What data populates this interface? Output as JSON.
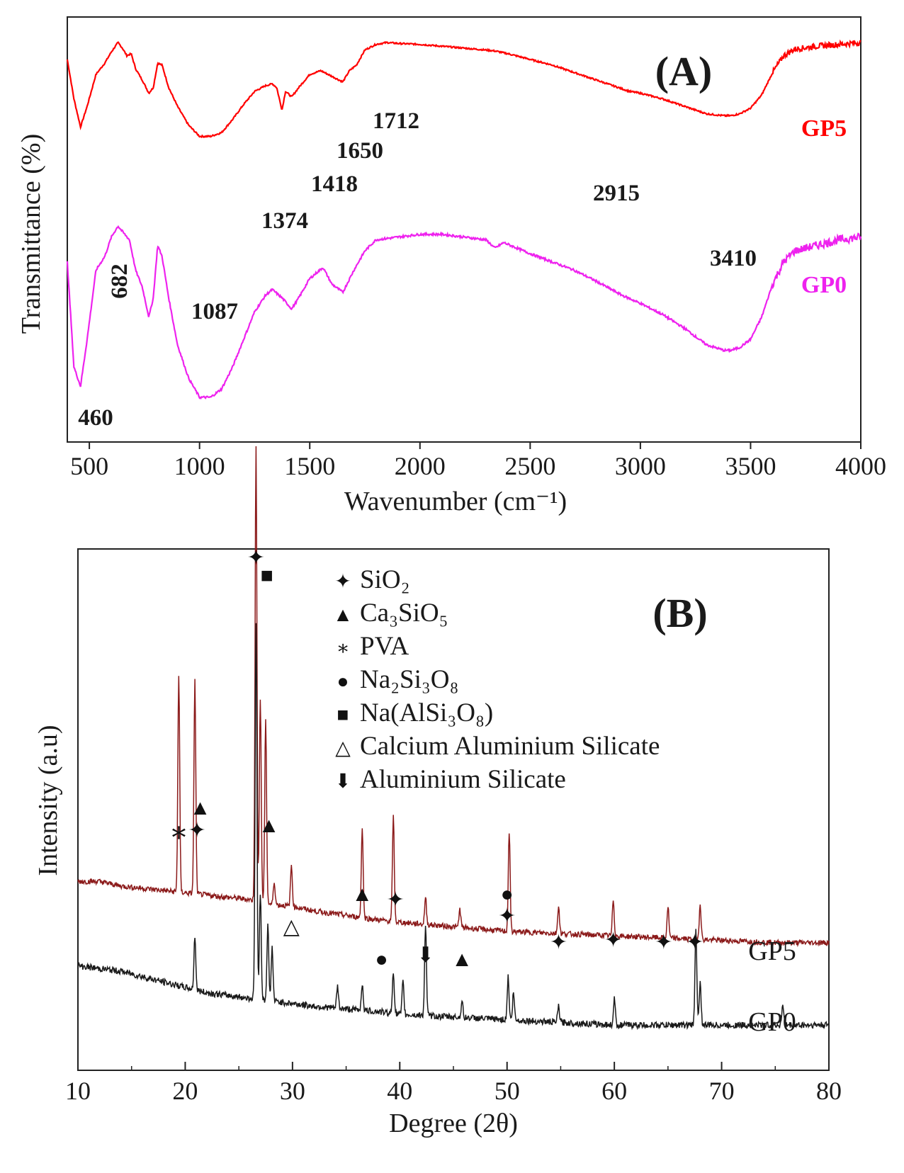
{
  "chart_data": [
    {
      "panel_label": "(A)",
      "type": "line",
      "xlabel": "Wavenumber (cm⁻¹)",
      "ylabel": "Transmittance (%)",
      "xlim": [
        400,
        4000
      ],
      "ylim": [
        0,
        1
      ],
      "x_ticks": [
        500,
        1000,
        1500,
        2000,
        2500,
        3000,
        3500,
        4000
      ],
      "series": [
        {
          "name": "GP5",
          "color": "#ff0000",
          "points": [
            [
              400,
              0.91
            ],
            [
              430,
              0.7
            ],
            [
              460,
              0.55
            ],
            [
              490,
              0.66
            ],
            [
              530,
              0.83
            ],
            [
              570,
              0.89
            ],
            [
              600,
              0.95
            ],
            [
              630,
              1.0
            ],
            [
              650,
              0.97
            ],
            [
              670,
              0.93
            ],
            [
              690,
              0.94
            ],
            [
              710,
              0.86
            ],
            [
              740,
              0.8
            ],
            [
              770,
              0.73
            ],
            [
              790,
              0.76
            ],
            [
              810,
              0.89
            ],
            [
              830,
              0.88
            ],
            [
              860,
              0.76
            ],
            [
              900,
              0.66
            ],
            [
              950,
              0.56
            ],
            [
              1000,
              0.5
            ],
            [
              1050,
              0.5
            ],
            [
              1100,
              0.52
            ],
            [
              1150,
              0.59
            ],
            [
              1200,
              0.67
            ],
            [
              1250,
              0.74
            ],
            [
              1300,
              0.77
            ],
            [
              1330,
              0.78
            ],
            [
              1350,
              0.76
            ],
            [
              1374,
              0.64
            ],
            [
              1390,
              0.74
            ],
            [
              1418,
              0.71
            ],
            [
              1450,
              0.76
            ],
            [
              1500,
              0.83
            ],
            [
              1550,
              0.85
            ],
            [
              1600,
              0.82
            ],
            [
              1650,
              0.79
            ],
            [
              1680,
              0.85
            ],
            [
              1712,
              0.88
            ],
            [
              1750,
              0.96
            ],
            [
              1800,
              0.99
            ],
            [
              1850,
              1.0
            ],
            [
              1900,
              0.995
            ],
            [
              2000,
              0.99
            ],
            [
              2100,
              0.98
            ],
            [
              2200,
              0.97
            ],
            [
              2300,
              0.96
            ],
            [
              2340,
              0.955
            ],
            [
              2400,
              0.94
            ],
            [
              2500,
              0.91
            ],
            [
              2600,
              0.88
            ],
            [
              2700,
              0.84
            ],
            [
              2800,
              0.8
            ],
            [
              2900,
              0.76
            ],
            [
              2950,
              0.74
            ],
            [
              3000,
              0.73
            ],
            [
              3100,
              0.7
            ],
            [
              3200,
              0.66
            ],
            [
              3300,
              0.62
            ],
            [
              3380,
              0.61
            ],
            [
              3410,
              0.61
            ],
            [
              3450,
              0.62
            ],
            [
              3500,
              0.65
            ],
            [
              3550,
              0.72
            ],
            [
              3600,
              0.84
            ],
            [
              3650,
              0.93
            ],
            [
              3700,
              0.965
            ],
            [
              3800,
              0.98
            ],
            [
              3900,
              0.99
            ],
            [
              4000,
              1.0
            ]
          ]
        },
        {
          "name": "GP0",
          "color": "#ee22ee",
          "points": [
            [
              400,
              0.58
            ],
            [
              430,
              0.2
            ],
            [
              460,
              0.13
            ],
            [
              490,
              0.3
            ],
            [
              530,
              0.55
            ],
            [
              570,
              0.6
            ],
            [
              600,
              0.67
            ],
            [
              630,
              0.71
            ],
            [
              650,
              0.69
            ],
            [
              682,
              0.66
            ],
            [
              710,
              0.55
            ],
            [
              740,
              0.49
            ],
            [
              770,
              0.38
            ],
            [
              790,
              0.45
            ],
            [
              810,
              0.64
            ],
            [
              830,
              0.6
            ],
            [
              860,
              0.45
            ],
            [
              900,
              0.28
            ],
            [
              950,
              0.16
            ],
            [
              1000,
              0.09
            ],
            [
              1050,
              0.09
            ],
            [
              1100,
              0.12
            ],
            [
              1150,
              0.2
            ],
            [
              1200,
              0.3
            ],
            [
              1250,
              0.4
            ],
            [
              1300,
              0.46
            ],
            [
              1330,
              0.48
            ],
            [
              1374,
              0.45
            ],
            [
              1418,
              0.41
            ],
            [
              1450,
              0.45
            ],
            [
              1500,
              0.52
            ],
            [
              1560,
              0.56
            ],
            [
              1600,
              0.5
            ],
            [
              1650,
              0.47
            ],
            [
              1700,
              0.55
            ],
            [
              1750,
              0.62
            ],
            [
              1800,
              0.66
            ],
            [
              1900,
              0.67
            ],
            [
              2000,
              0.68
            ],
            [
              2100,
              0.68
            ],
            [
              2200,
              0.67
            ],
            [
              2300,
              0.66
            ],
            [
              2340,
              0.63
            ],
            [
              2380,
              0.65
            ],
            [
              2500,
              0.61
            ],
            [
              2600,
              0.58
            ],
            [
              2700,
              0.55
            ],
            [
              2800,
              0.51
            ],
            [
              2915,
              0.46
            ],
            [
              3000,
              0.43
            ],
            [
              3100,
              0.39
            ],
            [
              3200,
              0.34
            ],
            [
              3300,
              0.28
            ],
            [
              3380,
              0.26
            ],
            [
              3410,
              0.26
            ],
            [
              3450,
              0.27
            ],
            [
              3500,
              0.3
            ],
            [
              3550,
              0.38
            ],
            [
              3600,
              0.5
            ],
            [
              3650,
              0.58
            ],
            [
              3700,
              0.62
            ],
            [
              3800,
              0.64
            ],
            [
              3900,
              0.66
            ],
            [
              4000,
              0.67
            ]
          ]
        }
      ],
      "annotations": [
        {
          "text": "460",
          "x": 460
        },
        {
          "text": "682",
          "x": 682
        },
        {
          "text": "1087",
          "x": 1087
        },
        {
          "text": "1374",
          "x": 1374
        },
        {
          "text": "1418",
          "x": 1418
        },
        {
          "text": "1650",
          "x": 1650
        },
        {
          "text": "1712",
          "x": 1712
        },
        {
          "text": "2915",
          "x": 2915
        },
        {
          "text": "3410",
          "x": 3410
        }
      ]
    },
    {
      "panel_label": "(B)",
      "type": "line",
      "xlabel": "Degree (2θ)",
      "ylabel": "Intensity (a.u)",
      "xlim": [
        10,
        80
      ],
      "ylim": [
        0,
        1
      ],
      "x_ticks": [
        10,
        20,
        30,
        40,
        50,
        60,
        70,
        80
      ],
      "series": [
        {
          "name": "GP5",
          "color": "#8b1a1a",
          "background": [
            [
              10,
              0.29
            ],
            [
              12,
              0.29
            ],
            [
              14,
              0.28
            ],
            [
              16,
              0.275
            ],
            [
              18,
              0.27
            ],
            [
              20,
              0.265
            ],
            [
              22,
              0.26
            ],
            [
              24,
              0.255
            ],
            [
              26,
              0.25
            ],
            [
              28,
              0.24
            ],
            [
              30,
              0.235
            ],
            [
              32,
              0.225
            ],
            [
              35,
              0.215
            ],
            [
              38,
              0.205
            ],
            [
              40,
              0.2
            ],
            [
              45,
              0.19
            ],
            [
              50,
              0.18
            ],
            [
              55,
              0.175
            ],
            [
              60,
              0.17
            ],
            [
              65,
              0.165
            ],
            [
              70,
              0.16
            ],
            [
              75,
              0.155
            ],
            [
              80,
              0.155
            ]
          ],
          "peaks": [
            [
              19.4,
              0.48
            ],
            [
              20.9,
              0.47
            ],
            [
              26.6,
              1.0
            ],
            [
              27.0,
              0.45
            ],
            [
              27.5,
              0.4
            ],
            [
              28.3,
              0.05
            ],
            [
              29.9,
              0.09
            ],
            [
              36.5,
              0.2
            ],
            [
              39.4,
              0.23
            ],
            [
              42.4,
              0.06
            ],
            [
              45.6,
              0.04
            ],
            [
              50.2,
              0.22
            ],
            [
              54.8,
              0.06
            ],
            [
              59.9,
              0.08
            ],
            [
              65.0,
              0.07
            ],
            [
              68.0,
              0.08
            ]
          ]
        },
        {
          "name": "GP0",
          "color": "#1a1a1a",
          "background": [
            [
              10,
              0.14
            ],
            [
              12,
              0.135
            ],
            [
              14,
              0.13
            ],
            [
              16,
              0.12
            ],
            [
              18,
              0.11
            ],
            [
              20,
              0.1
            ],
            [
              22,
              0.09
            ],
            [
              24,
              0.085
            ],
            [
              26,
              0.08
            ],
            [
              28,
              0.075
            ],
            [
              30,
              0.07
            ],
            [
              32,
              0.065
            ],
            [
              35,
              0.06
            ],
            [
              38,
              0.055
            ],
            [
              40,
              0.05
            ],
            [
              45,
              0.045
            ],
            [
              50,
              0.04
            ],
            [
              55,
              0.035
            ],
            [
              60,
              0.03
            ],
            [
              65,
              0.03
            ],
            [
              70,
              0.03
            ],
            [
              75,
              0.03
            ],
            [
              80,
              0.03
            ]
          ],
          "peaks": [
            [
              20.9,
              0.1
            ],
            [
              26.6,
              0.7
            ],
            [
              27.0,
              0.2
            ],
            [
              27.7,
              0.14
            ],
            [
              28.1,
              0.1
            ],
            [
              34.2,
              0.04
            ],
            [
              36.5,
              0.05
            ],
            [
              39.4,
              0.08
            ],
            [
              40.3,
              0.06
            ],
            [
              42.4,
              0.17
            ],
            [
              45.8,
              0.03
            ],
            [
              50.1,
              0.08
            ],
            [
              50.6,
              0.05
            ],
            [
              54.8,
              0.03
            ],
            [
              60.0,
              0.05
            ],
            [
              67.6,
              0.18
            ],
            [
              68.0,
              0.08
            ],
            [
              75.7,
              0.04
            ]
          ]
        }
      ],
      "legend": [
        {
          "symbol": "✦",
          "text": "SiO₂"
        },
        {
          "symbol": "▲",
          "text": "Ca₃SiO₅"
        },
        {
          "symbol": "∗",
          "text": "PVA"
        },
        {
          "symbol": "●",
          "text": "Na₂Si₃O₈"
        },
        {
          "symbol": "■",
          "text": "Na(AlSi₃O₈)"
        },
        {
          "symbol": "△",
          "text": "Calcium Aluminium Silicate"
        },
        {
          "symbol": "⬇",
          "text": "Aluminium Silicate"
        }
      ],
      "legend_position": "top-right",
      "peak_markers": [
        {
          "x": 26.6,
          "symbol": "✦"
        },
        {
          "x": 27.6,
          "symbol": "■"
        },
        {
          "x": 19.4,
          "symbol": "∗"
        },
        {
          "x": 21.1,
          "symbol": "✦"
        },
        {
          "x": 21.4,
          "symbol": "▲"
        },
        {
          "x": 27.8,
          "symbol": "▲"
        },
        {
          "x": 29.9,
          "symbol": "△"
        },
        {
          "x": 36.5,
          "symbol": "▲"
        },
        {
          "x": 39.6,
          "symbol": "✦"
        },
        {
          "x": 38.3,
          "symbol": "●"
        },
        {
          "x": 42.4,
          "symbol": "⬇"
        },
        {
          "x": 45.8,
          "symbol": "▲"
        },
        {
          "x": 50.0,
          "symbol": "●"
        },
        {
          "x": 50.0,
          "symbol": "✦"
        },
        {
          "x": 54.8,
          "symbol": "✦"
        },
        {
          "x": 59.9,
          "symbol": "✦"
        },
        {
          "x": 64.6,
          "symbol": "✦"
        },
        {
          "x": 67.5,
          "symbol": "✦"
        }
      ]
    }
  ]
}
